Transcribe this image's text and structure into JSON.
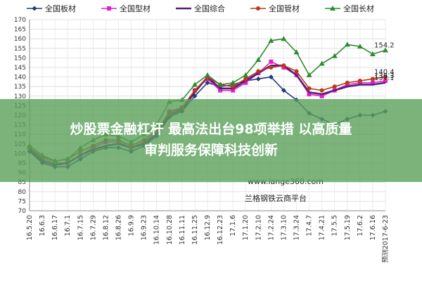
{
  "chart_data": {
    "type": "line",
    "title": "",
    "xlabel": "",
    "ylabel": "",
    "ylim": [
      70,
      170
    ],
    "yticks": [
      70,
      75,
      80,
      85,
      90,
      95,
      100,
      105,
      110,
      115,
      120,
      125,
      130,
      135,
      140,
      145,
      150,
      155,
      160,
      165,
      170
    ],
    "grid": true,
    "legend_position": "top",
    "categories": [
      "16.5.20",
      "16.6.3",
      "16.6.17",
      "16.7.1",
      "16.7.15",
      "16.7.29",
      "16.8.12",
      "16.8.26",
      "16.9.9",
      "16.9.23",
      "16.10.14",
      "16.10.28",
      "16.11.11",
      "16.11.25",
      "16.12.9",
      "16.12.23",
      "17.1.6",
      "17.1.20",
      "17.2.10",
      "17.2.24",
      "17.3.10",
      "17.3.24",
      "17.4.7",
      "17.4.21",
      "17.5.5",
      "17.5.19",
      "17.6.2",
      "17.6.16",
      "预测2017-6-23"
    ],
    "series": [
      {
        "name": "全国板材",
        "color": "#1f3d7a",
        "marker": "diamond",
        "values": [
          101,
          95,
          93,
          93,
          97,
          101,
          103,
          103,
          101,
          104,
          109,
          119,
          122,
          130,
          137,
          135,
          136,
          138,
          139,
          140,
          133,
          128,
          121,
          118,
          115,
          118,
          120,
          120,
          122
        ],
        "end_label": ""
      },
      {
        "name": "全国型材",
        "color": "#e020c8",
        "marker": "square",
        "values": [
          103,
          97,
          95,
          95,
          99,
          103,
          106,
          106,
          103,
          106,
          111,
          122,
          124,
          133,
          139,
          133,
          133,
          137,
          142,
          148,
          145,
          141,
          131,
          130,
          133,
          136,
          137,
          137,
          138
        ],
        "end_label": "138.3"
      },
      {
        "name": "全国综合",
        "color": "#5a1a78",
        "marker": "none",
        "values": [
          102,
          96,
          94,
          95,
          99,
          102,
          104,
          105,
          103,
          105,
          110,
          120,
          123,
          132,
          140,
          134,
          134,
          138,
          142,
          146,
          146,
          141,
          132,
          131,
          133,
          135,
          136,
          136,
          137
        ],
        "end_label": "137.1"
      },
      {
        "name": "全国管材",
        "color": "#b83a1a",
        "marker": "circle",
        "values": [
          103,
          98,
          96,
          97,
          101,
          104,
          107,
          107,
          104,
          107,
          112,
          121,
          124,
          133,
          140,
          136,
          135,
          139,
          143,
          145,
          146,
          143,
          134,
          133,
          135,
          137,
          138,
          139,
          140
        ],
        "end_label": "140.4"
      },
      {
        "name": "全国长材",
        "color": "#2e8b2e",
        "marker": "triangle",
        "values": [
          104,
          99,
          96,
          97,
          103,
          107,
          110,
          109,
          106,
          110,
          115,
          127,
          128,
          136,
          141,
          136,
          137,
          141,
          149,
          159,
          160,
          153,
          141,
          147,
          151,
          157,
          156,
          152,
          154
        ],
        "end_label": "154.2"
      }
    ]
  },
  "watermark": {
    "url": "www.lange360.com",
    "platform": "兰格钢铁云商平台"
  },
  "banner": {
    "line1": "炒股票金融杠杆 最高法出台98项举措 以高质量",
    "line2": "审判服务保障科技创新",
    "color": "#5aa05a"
  }
}
